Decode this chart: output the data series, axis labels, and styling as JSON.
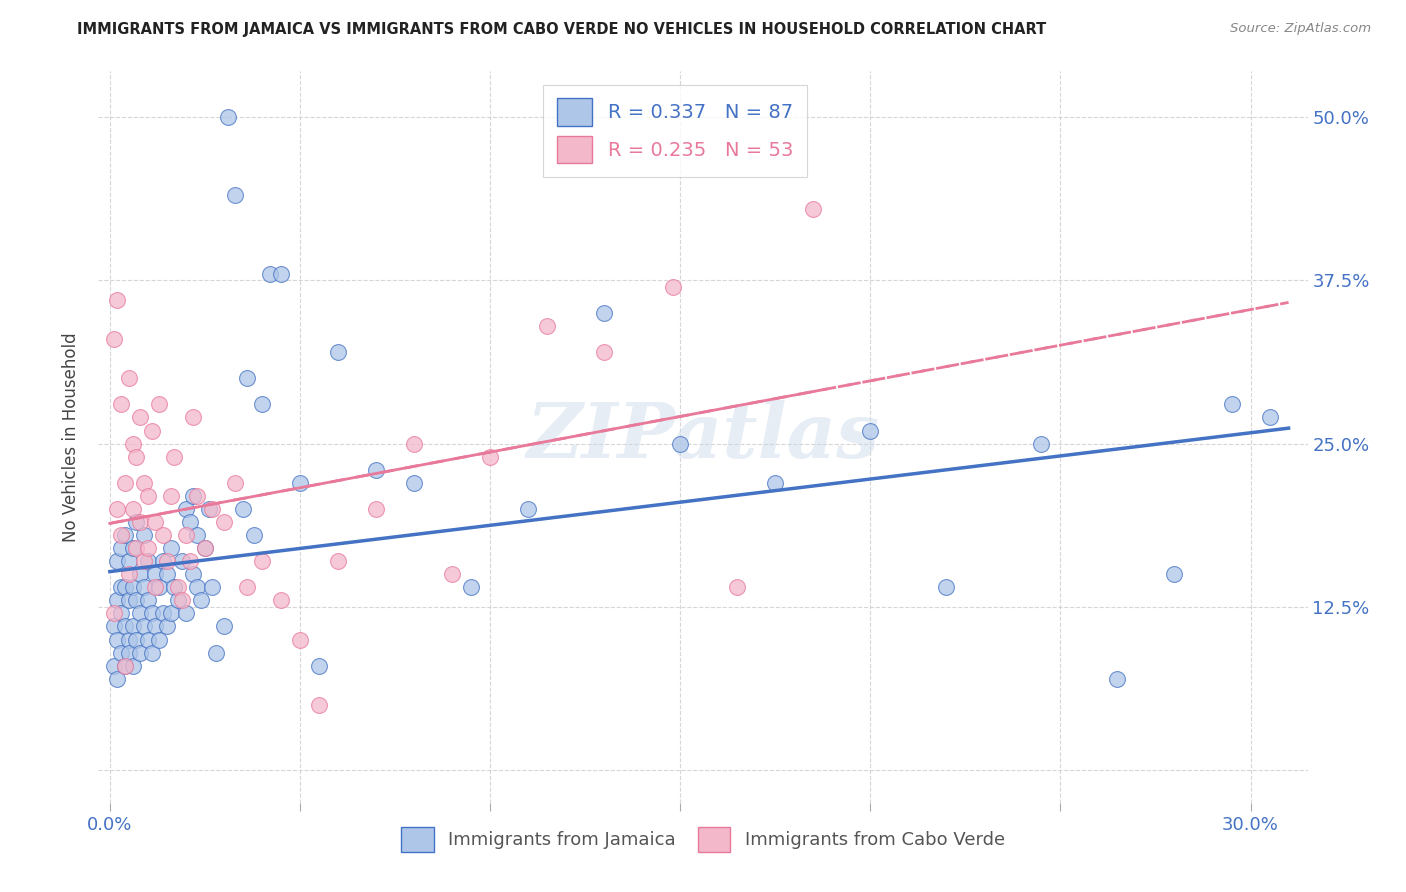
{
  "title": "IMMIGRANTS FROM JAMAICA VS IMMIGRANTS FROM CABO VERDE NO VEHICLES IN HOUSEHOLD CORRELATION CHART",
  "source": "Source: ZipAtlas.com",
  "ylabel": "No Vehicles in Household",
  "legend_label_blue": "Immigrants from Jamaica",
  "legend_label_pink": "Immigrants from Cabo Verde",
  "R_blue": 0.337,
  "N_blue": 87,
  "R_pink": 0.235,
  "N_pink": 53,
  "xlim": [
    -0.003,
    0.315
  ],
  "ylim": [
    -0.025,
    0.535
  ],
  "color_blue": "#aec6e8",
  "color_pink": "#f4b8cb",
  "line_blue": "#4472c4",
  "line_pink": "#e8799a",
  "watermark": "ZIPatlas",
  "watermark_color": "#c8d8e8",
  "blue_intercept": 0.095,
  "blue_slope": 0.58,
  "pink_intercept": 0.155,
  "pink_slope": 0.75,
  "blue_x": [
    0.001,
    0.001,
    0.002,
    0.002,
    0.002,
    0.002,
    0.003,
    0.003,
    0.003,
    0.003,
    0.004,
    0.004,
    0.004,
    0.004,
    0.005,
    0.005,
    0.005,
    0.005,
    0.006,
    0.006,
    0.006,
    0.006,
    0.007,
    0.007,
    0.007,
    0.008,
    0.008,
    0.008,
    0.009,
    0.009,
    0.009,
    0.01,
    0.01,
    0.01,
    0.011,
    0.011,
    0.012,
    0.012,
    0.013,
    0.013,
    0.014,
    0.014,
    0.015,
    0.015,
    0.016,
    0.016,
    0.017,
    0.018,
    0.019,
    0.02,
    0.02,
    0.021,
    0.022,
    0.022,
    0.023,
    0.023,
    0.024,
    0.025,
    0.026,
    0.027,
    0.028,
    0.03,
    0.031,
    0.033,
    0.035,
    0.036,
    0.038,
    0.04,
    0.042,
    0.045,
    0.05,
    0.055,
    0.06,
    0.07,
    0.08,
    0.095,
    0.11,
    0.13,
    0.15,
    0.175,
    0.2,
    0.22,
    0.245,
    0.265,
    0.28,
    0.295,
    0.305
  ],
  "blue_y": [
    0.11,
    0.08,
    0.13,
    0.1,
    0.07,
    0.16,
    0.09,
    0.14,
    0.12,
    0.17,
    0.08,
    0.11,
    0.14,
    0.18,
    0.1,
    0.13,
    0.16,
    0.09,
    0.11,
    0.14,
    0.08,
    0.17,
    0.1,
    0.13,
    0.19,
    0.09,
    0.12,
    0.15,
    0.11,
    0.14,
    0.18,
    0.1,
    0.13,
    0.16,
    0.09,
    0.12,
    0.11,
    0.15,
    0.1,
    0.14,
    0.12,
    0.16,
    0.11,
    0.15,
    0.12,
    0.17,
    0.14,
    0.13,
    0.16,
    0.12,
    0.2,
    0.19,
    0.15,
    0.21,
    0.14,
    0.18,
    0.13,
    0.17,
    0.2,
    0.14,
    0.09,
    0.11,
    0.5,
    0.44,
    0.2,
    0.3,
    0.18,
    0.28,
    0.38,
    0.38,
    0.22,
    0.08,
    0.32,
    0.23,
    0.22,
    0.14,
    0.2,
    0.35,
    0.25,
    0.22,
    0.26,
    0.14,
    0.25,
    0.07,
    0.15,
    0.28,
    0.27
  ],
  "pink_x": [
    0.001,
    0.001,
    0.002,
    0.002,
    0.003,
    0.003,
    0.004,
    0.004,
    0.005,
    0.005,
    0.006,
    0.006,
    0.007,
    0.007,
    0.008,
    0.008,
    0.009,
    0.009,
    0.01,
    0.01,
    0.011,
    0.012,
    0.012,
    0.013,
    0.014,
    0.015,
    0.016,
    0.017,
    0.018,
    0.019,
    0.02,
    0.021,
    0.022,
    0.023,
    0.025,
    0.027,
    0.03,
    0.033,
    0.036,
    0.04,
    0.045,
    0.05,
    0.055,
    0.06,
    0.07,
    0.08,
    0.09,
    0.1,
    0.115,
    0.13,
    0.148,
    0.165,
    0.185
  ],
  "pink_y": [
    0.12,
    0.33,
    0.2,
    0.36,
    0.18,
    0.28,
    0.22,
    0.08,
    0.15,
    0.3,
    0.25,
    0.2,
    0.17,
    0.24,
    0.19,
    0.27,
    0.16,
    0.22,
    0.21,
    0.17,
    0.26,
    0.14,
    0.19,
    0.28,
    0.18,
    0.16,
    0.21,
    0.24,
    0.14,
    0.13,
    0.18,
    0.16,
    0.27,
    0.21,
    0.17,
    0.2,
    0.19,
    0.22,
    0.14,
    0.16,
    0.13,
    0.1,
    0.05,
    0.16,
    0.2,
    0.25,
    0.15,
    0.24,
    0.34,
    0.32,
    0.37,
    0.14,
    0.43
  ]
}
